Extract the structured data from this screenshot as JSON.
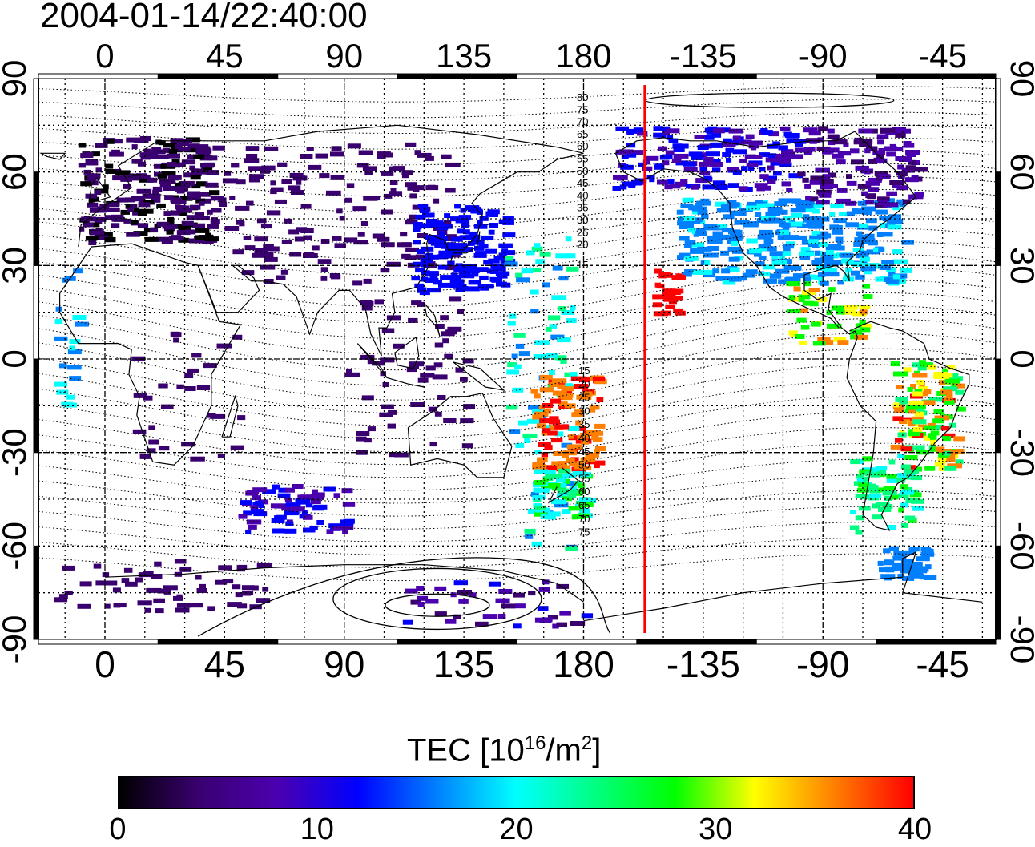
{
  "timestamp": "2004-01-14/22:40:00",
  "map": {
    "top_lon_labels": [
      "0",
      "45",
      "90",
      "135",
      "180",
      "-135",
      "-90",
      "-45"
    ],
    "bottom_lon_labels": [
      "0",
      "45",
      "90",
      "135",
      "180",
      "-135",
      "-90",
      "-45"
    ],
    "lat_labels": [
      "90",
      "60",
      "30",
      "0",
      "-30",
      "-60",
      "-90"
    ],
    "contour_labels_north": [
      "80",
      "75",
      "70",
      "65",
      "60",
      "55",
      "50",
      "45",
      "40",
      "35",
      "30",
      "25",
      "20",
      "15"
    ],
    "contour_labels_south": [
      "15",
      "20",
      "25",
      "30",
      "35",
      "40",
      "45",
      "50",
      "55",
      "60",
      "65",
      "70",
      "75"
    ],
    "terminator_lon": -157,
    "terminator_color": "#ff0000"
  },
  "colorbar": {
    "title": "TEC  [10",
    "title_exp": "16",
    "title_mid": "/m",
    "title_exp2": "2",
    "title_end": "]",
    "tick_labels": [
      "0",
      "10",
      "20",
      "30",
      "40"
    ],
    "min": 0,
    "max": 40,
    "colors": [
      "#000000",
      "#3a0070",
      "#4b00b0",
      "#0000ff",
      "#0080ff",
      "#00ffff",
      "#00ff80",
      "#00ff00",
      "#ffff00",
      "#ff8000",
      "#ff0000"
    ]
  }
}
